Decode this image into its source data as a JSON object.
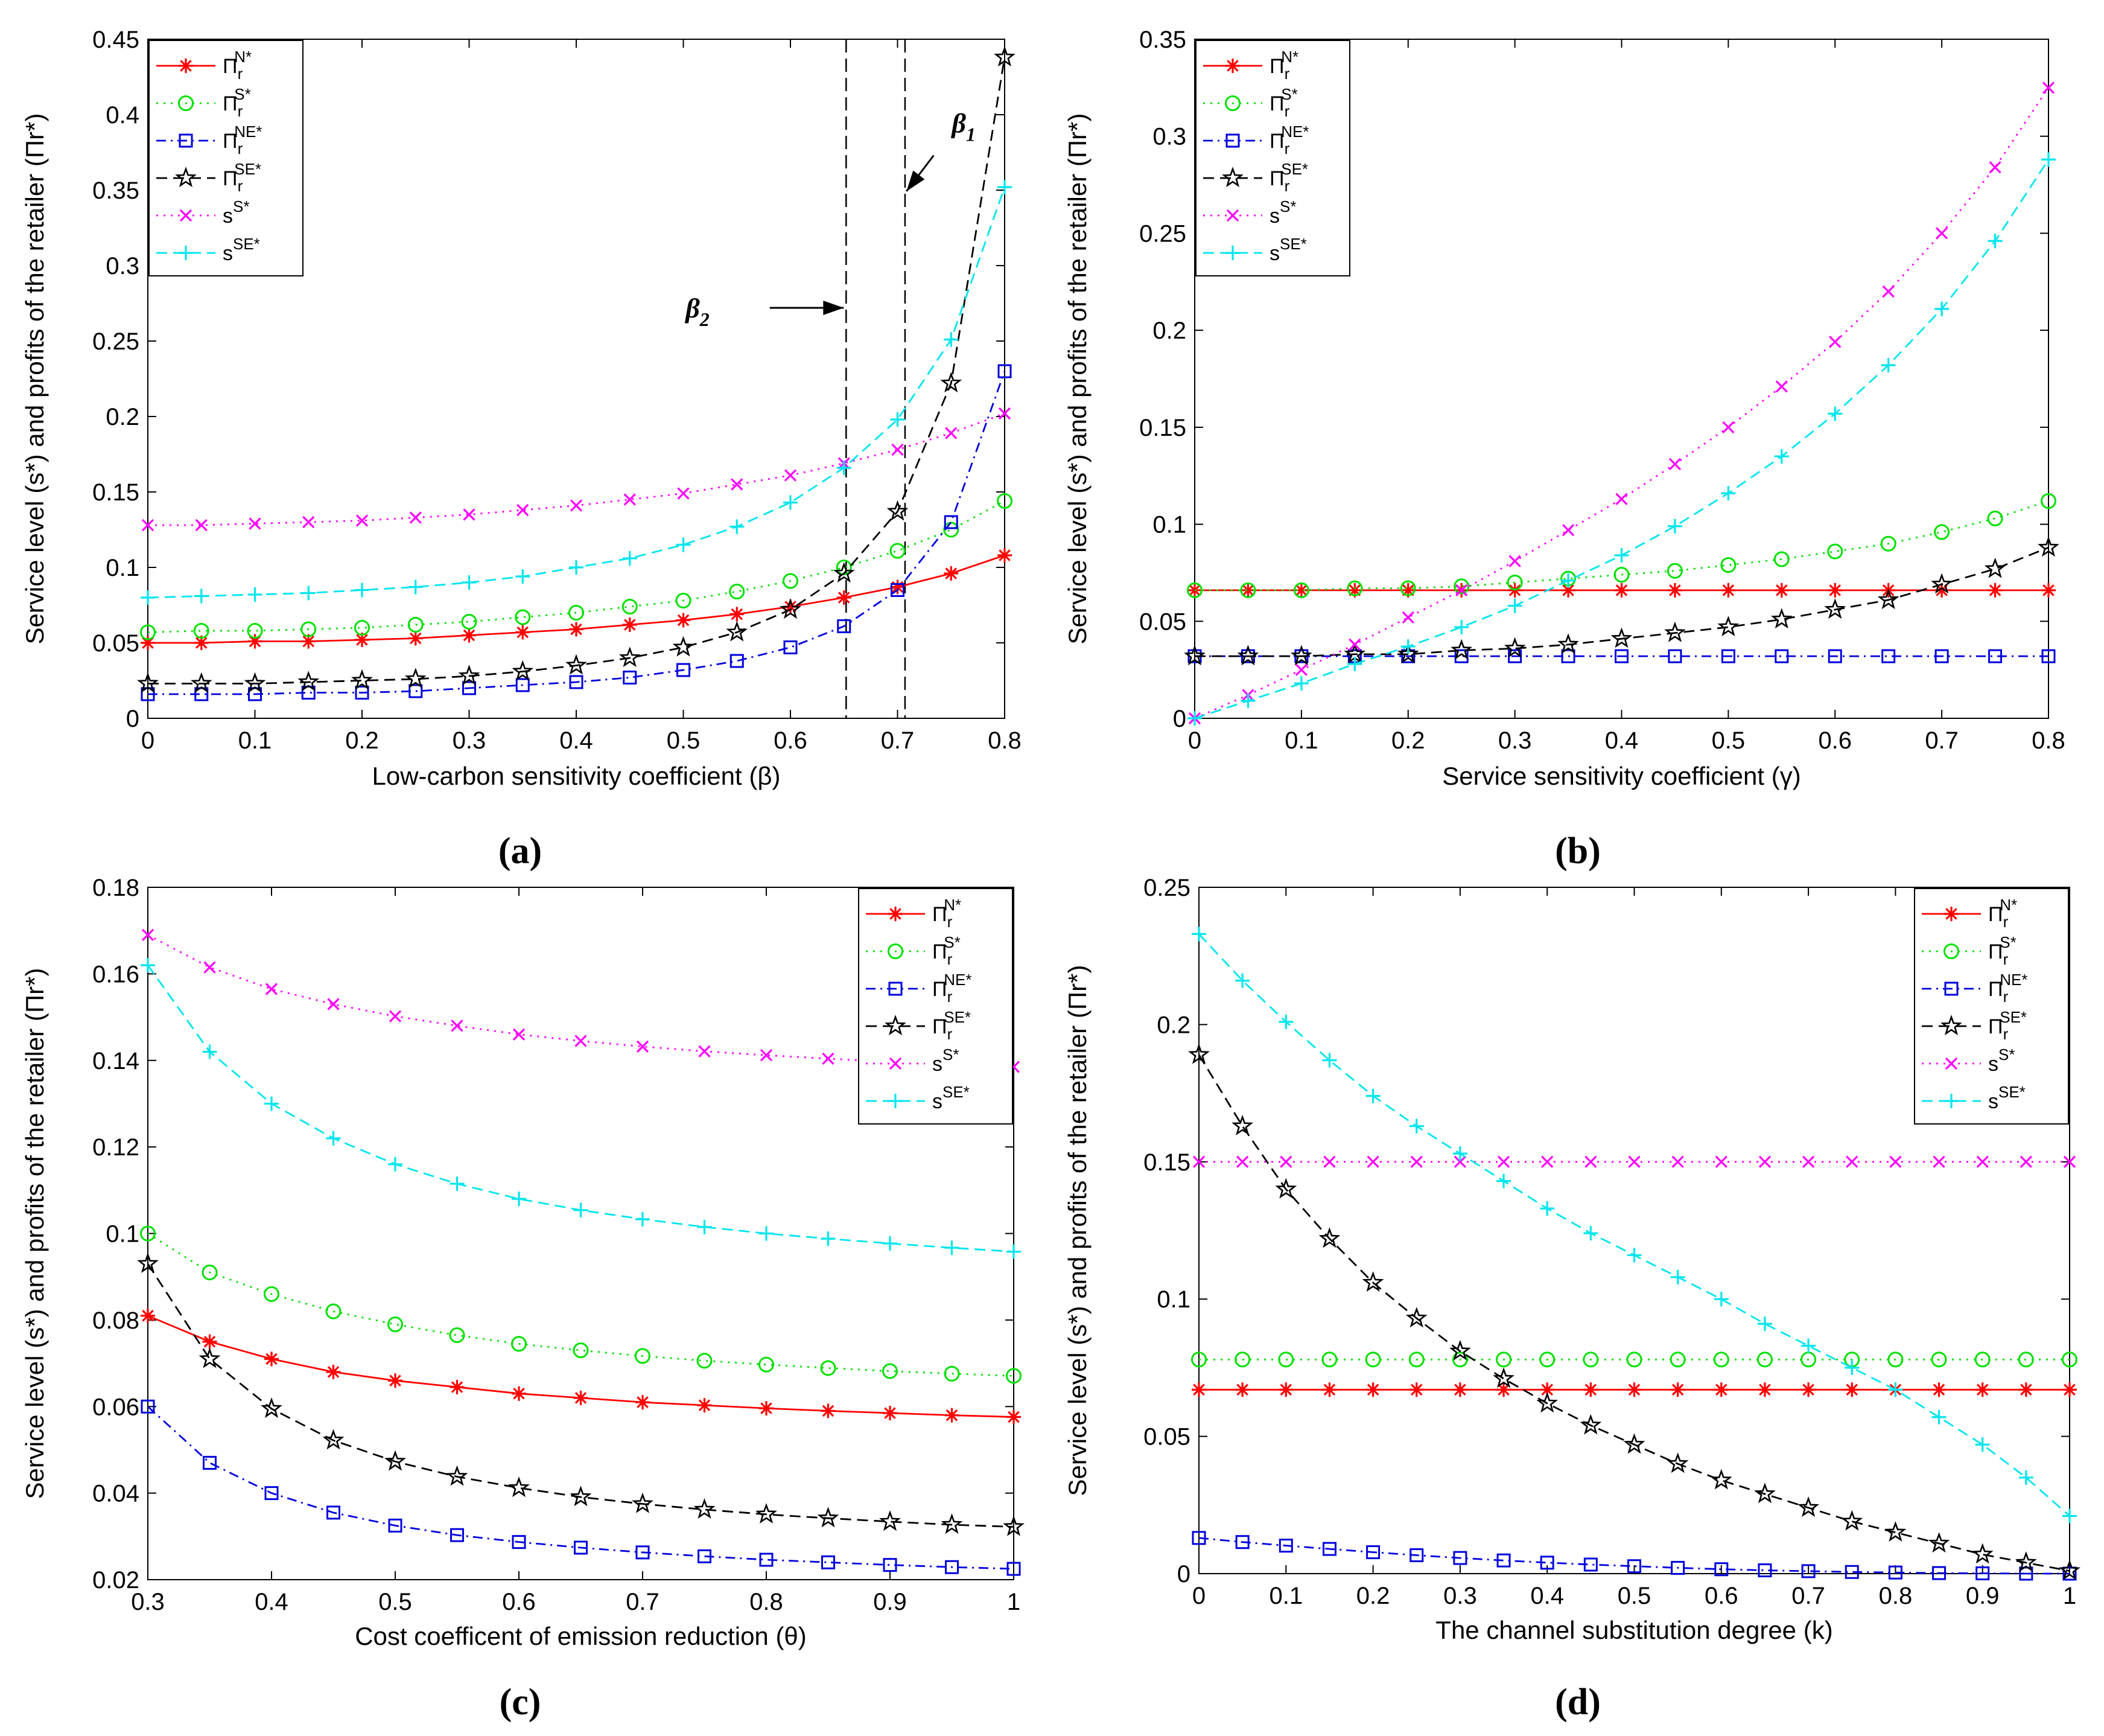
{
  "figure": {
    "panels": [
      "(a)",
      "(b)",
      "(c)",
      "(d)"
    ]
  },
  "legend_entries": [
    {
      "base": "Π",
      "sub": "r",
      "sup": "N*"
    },
    {
      "base": "Π",
      "sub": "r",
      "sup": "S*"
    },
    {
      "base": "Π",
      "sub": "r",
      "sup": "NE*"
    },
    {
      "base": "Π",
      "sub": "r",
      "sup": "SE*"
    },
    {
      "base": "s",
      "sub": "",
      "sup": "S*"
    },
    {
      "base": "s",
      "sub": "",
      "sup": "SE*"
    }
  ],
  "series_styles": [
    {
      "key": "PiN",
      "color": "#ff0000",
      "dash": "",
      "marker": "asterisk"
    },
    {
      "key": "PiS",
      "color": "#00e000",
      "dash": "3 9",
      "marker": "circle"
    },
    {
      "key": "PiNE",
      "color": "#0000dd",
      "dash": "16 8 3 8",
      "marker": "square"
    },
    {
      "key": "PiSE",
      "color": "#000000",
      "dash": "18 10",
      "marker": "star"
    },
    {
      "key": "sS",
      "color": "#ff00ff",
      "dash": "3 9",
      "marker": "x"
    },
    {
      "key": "sSE",
      "color": "#00e5ee",
      "dash": "18 10",
      "marker": "plus"
    }
  ],
  "chart_data": [
    {
      "type": "line",
      "panel": "(a)",
      "xlabel": "Low-carbon sensitivity coefficient (β)",
      "ylabel": "Service level (s*) and profits of the retailer (Πr*)",
      "xlim": [
        0,
        0.8
      ],
      "ylim": [
        0,
        0.45
      ],
      "xticks": [
        0,
        0.1,
        0.2,
        0.3,
        0.4,
        0.5,
        0.6,
        0.7,
        0.8
      ],
      "yticks": [
        0,
        0.05,
        0.1,
        0.15,
        0.2,
        0.25,
        0.3,
        0.35,
        0.4,
        0.45
      ],
      "xtick_labels": [
        "0",
        "0.1",
        "0.2",
        "0.3",
        "0.4",
        "0.5",
        "0.6",
        "0.7",
        "0.8"
      ],
      "ytick_labels": [
        "0",
        "0.05",
        "0.1",
        "0.15",
        "0.2",
        "0.25",
        "0.3",
        "0.35",
        "0.4",
        "0.45"
      ],
      "legend_position": "top-left",
      "x": [
        0,
        0.05,
        0.1,
        0.15,
        0.2,
        0.25,
        0.3,
        0.35,
        0.4,
        0.45,
        0.5,
        0.55,
        0.6,
        0.65,
        0.7,
        0.75,
        0.8
      ],
      "series": [
        {
          "name": "Πr N*",
          "values": [
            0.05,
            0.05,
            0.051,
            0.051,
            0.052,
            0.053,
            0.055,
            0.057,
            0.059,
            0.062,
            0.065,
            0.069,
            0.074,
            0.08,
            0.087,
            0.096,
            0.108
          ]
        },
        {
          "name": "Πr S*",
          "values": [
            0.057,
            0.058,
            0.058,
            0.059,
            0.06,
            0.062,
            0.064,
            0.067,
            0.07,
            0.074,
            0.078,
            0.084,
            0.091,
            0.1,
            0.111,
            0.125,
            0.144
          ]
        },
        {
          "name": "Πr NE*",
          "values": [
            0.016,
            0.016,
            0.016,
            0.017,
            0.017,
            0.018,
            0.02,
            0.022,
            0.024,
            0.027,
            0.032,
            0.038,
            0.047,
            0.061,
            0.085,
            0.13,
            0.23
          ]
        },
        {
          "name": "Πr SE*",
          "values": [
            0.023,
            0.023,
            0.023,
            0.024,
            0.025,
            0.026,
            0.028,
            0.031,
            0.035,
            0.04,
            0.047,
            0.057,
            0.072,
            0.096,
            0.137,
            0.222,
            0.438
          ]
        },
        {
          "name": "s S*",
          "values": [
            0.128,
            0.128,
            0.129,
            0.13,
            0.131,
            0.133,
            0.135,
            0.138,
            0.141,
            0.145,
            0.149,
            0.155,
            0.161,
            0.169,
            0.178,
            0.189,
            0.202
          ]
        },
        {
          "name": "s SE*",
          "values": [
            0.08,
            0.081,
            0.082,
            0.083,
            0.085,
            0.087,
            0.09,
            0.094,
            0.1,
            0.106,
            0.115,
            0.127,
            0.143,
            0.166,
            0.198,
            0.251,
            0.352
          ]
        }
      ],
      "vlines": [
        0.652,
        0.707
      ],
      "annotations": [
        {
          "label": "β",
          "sub": "1",
          "point_x": 0.707,
          "point_y": 0.348,
          "text_x": 0.745,
          "text_y": 0.385
        },
        {
          "label": "β",
          "sub": "2",
          "point_x": 0.652,
          "point_y": 0.272,
          "text_x": 0.53,
          "text_y": 0.272
        }
      ]
    },
    {
      "type": "line",
      "panel": "(b)",
      "xlabel": "Service sensitivity coefficient (γ)",
      "ylabel": "Service level (s*) and profits of the retailer (Πr*)",
      "xlim": [
        0,
        0.8
      ],
      "ylim": [
        0,
        0.35
      ],
      "xticks": [
        0,
        0.1,
        0.2,
        0.3,
        0.4,
        0.5,
        0.6,
        0.7,
        0.8
      ],
      "yticks": [
        0,
        0.05,
        0.1,
        0.15,
        0.2,
        0.25,
        0.3,
        0.35
      ],
      "xtick_labels": [
        "0",
        "0.1",
        "0.2",
        "0.3",
        "0.4",
        "0.5",
        "0.6",
        "0.7",
        "0.8"
      ],
      "ytick_labels": [
        "0",
        "0.05",
        "0.1",
        "0.15",
        "0.2",
        "0.25",
        "0.3",
        "0.35"
      ],
      "legend_position": "top-left",
      "x": [
        0,
        0.05,
        0.1,
        0.15,
        0.2,
        0.25,
        0.3,
        0.35,
        0.4,
        0.45,
        0.5,
        0.55,
        0.6,
        0.65,
        0.7,
        0.75,
        0.8
      ],
      "series": [
        {
          "name": "Πr N*",
          "values": [
            0.066,
            0.066,
            0.066,
            0.066,
            0.066,
            0.066,
            0.066,
            0.066,
            0.066,
            0.066,
            0.066,
            0.066,
            0.066,
            0.066,
            0.066,
            0.066,
            0.066
          ]
        },
        {
          "name": "Πr S*",
          "values": [
            0.066,
            0.066,
            0.066,
            0.067,
            0.067,
            0.068,
            0.07,
            0.072,
            0.074,
            0.076,
            0.079,
            0.082,
            0.086,
            0.09,
            0.096,
            0.103,
            0.112
          ]
        },
        {
          "name": "Πr NE*",
          "values": [
            0.032,
            0.032,
            0.032,
            0.032,
            0.032,
            0.032,
            0.032,
            0.032,
            0.032,
            0.032,
            0.032,
            0.032,
            0.032,
            0.032,
            0.032,
            0.032,
            0.032
          ]
        },
        {
          "name": "Πr SE*",
          "values": [
            0.032,
            0.032,
            0.032,
            0.033,
            0.033,
            0.035,
            0.036,
            0.038,
            0.041,
            0.044,
            0.047,
            0.051,
            0.056,
            0.061,
            0.069,
            0.077,
            0.088
          ]
        },
        {
          "name": "s S*",
          "values": [
            0,
            0.012,
            0.025,
            0.038,
            0.052,
            0.066,
            0.081,
            0.097,
            0.113,
            0.131,
            0.15,
            0.171,
            0.194,
            0.22,
            0.25,
            0.284,
            0.325
          ]
        },
        {
          "name": "s SE*",
          "values": [
            0,
            0.009,
            0.018,
            0.028,
            0.037,
            0.047,
            0.058,
            0.071,
            0.084,
            0.099,
            0.116,
            0.135,
            0.157,
            0.182,
            0.211,
            0.246,
            0.288
          ]
        }
      ]
    },
    {
      "type": "line",
      "panel": "(c)",
      "xlabel": "Cost coefficent of emission reduction  (θ)",
      "ylabel": "Service level (s*) and profits of the retailer (Πr*)",
      "xlim": [
        0.3,
        1
      ],
      "ylim": [
        0.02,
        0.18
      ],
      "xticks": [
        0.3,
        0.4,
        0.5,
        0.6,
        0.7,
        0.8,
        0.9,
        1
      ],
      "yticks": [
        0.02,
        0.04,
        0.06,
        0.08,
        0.1,
        0.12,
        0.14,
        0.16,
        0.18
      ],
      "xtick_labels": [
        "0.3",
        "0.4",
        "0.5",
        "0.6",
        "0.7",
        "0.8",
        "0.9",
        "1"
      ],
      "ytick_labels": [
        "0.02",
        "0.04",
        "0.06",
        "0.08",
        "0.1",
        "0.12",
        "0.14",
        "0.16",
        "0.18"
      ],
      "legend_position": "top-right",
      "x": [
        0.3,
        0.35,
        0.4,
        0.45,
        0.5,
        0.55,
        0.6,
        0.65,
        0.7,
        0.75,
        0.8,
        0.85,
        0.9,
        0.95,
        1
      ],
      "series": [
        {
          "name": "Πr N*",
          "values": [
            0.081,
            0.075,
            0.071,
            0.068,
            0.066,
            0.0645,
            0.063,
            0.062,
            0.061,
            0.0603,
            0.0596,
            0.059,
            0.0585,
            0.058,
            0.0576
          ]
        },
        {
          "name": "Πr S*",
          "values": [
            0.1,
            0.091,
            0.086,
            0.082,
            0.079,
            0.0765,
            0.0745,
            0.073,
            0.0717,
            0.0706,
            0.0697,
            0.0689,
            0.0682,
            0.0676,
            0.0671
          ]
        },
        {
          "name": "Πr NE*",
          "values": [
            0.06,
            0.047,
            0.04,
            0.0355,
            0.0325,
            0.0303,
            0.0287,
            0.0274,
            0.0263,
            0.0254,
            0.0246,
            0.024,
            0.0234,
            0.0229,
            0.0225
          ]
        },
        {
          "name": "Πr SE*",
          "values": [
            0.093,
            0.071,
            0.0595,
            0.0522,
            0.0473,
            0.0438,
            0.0412,
            0.0391,
            0.0375,
            0.0362,
            0.0351,
            0.0342,
            0.0334,
            0.0327,
            0.0322
          ]
        },
        {
          "name": "s S*",
          "values": [
            0.169,
            0.1615,
            0.1565,
            0.153,
            0.1502,
            0.148,
            0.146,
            0.1445,
            0.1432,
            0.1421,
            0.1412,
            0.1404,
            0.1397,
            0.139,
            0.1385
          ]
        },
        {
          "name": "s SE*",
          "values": [
            0.162,
            0.142,
            0.13,
            0.122,
            0.116,
            0.1115,
            0.108,
            0.1054,
            0.1033,
            0.1015,
            0.1,
            0.0988,
            0.0977,
            0.0967,
            0.0958
          ]
        }
      ]
    },
    {
      "type": "line",
      "panel": "(d)",
      "xlabel": "The channel substitution degree (k)",
      "ylabel": "Service level (s*) and profits of the retailer (Πr*)",
      "xlim": [
        0,
        1
      ],
      "ylim": [
        0,
        0.25
      ],
      "xticks": [
        0,
        0.1,
        0.2,
        0.3,
        0.4,
        0.5,
        0.6,
        0.7,
        0.8,
        0.9,
        1
      ],
      "yticks": [
        0,
        0.05,
        0.1,
        0.15,
        0.2,
        0.25
      ],
      "xtick_labels": [
        "0",
        "0.1",
        "0.2",
        "0.3",
        "0.4",
        "0.5",
        "0.6",
        "0.7",
        "0.8",
        "0.9",
        "1"
      ],
      "ytick_labels": [
        "0",
        "0.05",
        "0.1",
        "0.15",
        "0.2",
        "0.25"
      ],
      "legend_position": "top-right",
      "x": [
        0,
        0.05,
        0.1,
        0.15,
        0.2,
        0.25,
        0.3,
        0.35,
        0.4,
        0.45,
        0.5,
        0.55,
        0.6,
        0.65,
        0.7,
        0.75,
        0.8,
        0.85,
        0.9,
        0.95,
        1
      ],
      "series": [
        {
          "name": "Πr N*",
          "values": [
            0.067,
            0.067,
            0.067,
            0.067,
            0.067,
            0.067,
            0.067,
            0.067,
            0.067,
            0.067,
            0.067,
            0.067,
            0.067,
            0.067,
            0.067,
            0.067,
            0.067,
            0.067,
            0.067,
            0.067,
            0.067
          ]
        },
        {
          "name": "Πr S*",
          "values": [
            0.078,
            0.078,
            0.078,
            0.078,
            0.078,
            0.078,
            0.078,
            0.078,
            0.078,
            0.078,
            0.078,
            0.078,
            0.078,
            0.078,
            0.078,
            0.078,
            0.078,
            0.078,
            0.078,
            0.078,
            0.078
          ]
        },
        {
          "name": "Πr NE*",
          "values": [
            0.013,
            0.0115,
            0.0102,
            0.009,
            0.0078,
            0.0067,
            0.0057,
            0.0048,
            0.004,
            0.0033,
            0.0027,
            0.0021,
            0.0016,
            0.0012,
            0.0009,
            0.0006,
            0.0004,
            0.0002,
            0.0001,
            0,
            0
          ]
        },
        {
          "name": "Πr SE*",
          "values": [
            0.189,
            0.163,
            0.14,
            0.122,
            0.106,
            0.093,
            0.081,
            0.071,
            0.062,
            0.054,
            0.047,
            0.04,
            0.034,
            0.029,
            0.024,
            0.019,
            0.015,
            0.011,
            0.007,
            0.004,
            0.001
          ]
        },
        {
          "name": "s S*",
          "values": [
            0.15,
            0.15,
            0.15,
            0.15,
            0.15,
            0.15,
            0.15,
            0.15,
            0.15,
            0.15,
            0.15,
            0.15,
            0.15,
            0.15,
            0.15,
            0.15,
            0.15,
            0.15,
            0.15,
            0.15,
            0.15
          ]
        },
        {
          "name": "s SE*",
          "values": [
            0.233,
            0.216,
            0.201,
            0.187,
            0.174,
            0.163,
            0.153,
            0.143,
            0.133,
            0.124,
            0.116,
            0.108,
            0.1,
            0.091,
            0.083,
            0.075,
            0.067,
            0.057,
            0.047,
            0.035,
            0.021
          ]
        }
      ]
    }
  ]
}
